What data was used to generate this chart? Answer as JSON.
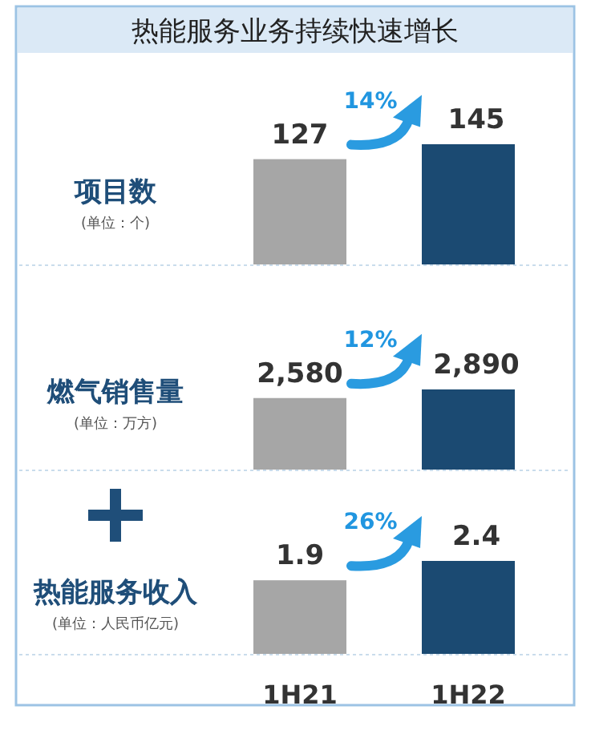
{
  "chart_data": [
    {
      "type": "bar",
      "title": "热能服务业务持续快速增长",
      "ylabel": "项目数",
      "subtitle": "(单位：个)",
      "categories": [
        null,
        null
      ],
      "values": [
        127,
        145
      ],
      "colors": [
        "#a6a6a6",
        "#1b4a72"
      ],
      "data_labels": true,
      "annotations": [
        "14%"
      ],
      "tick_labels": false
    },
    {
      "type": "bar",
      "ylabel": "燃气销售量",
      "subtitle": "(单位：万方)",
      "categories": [
        null,
        null
      ],
      "values": [
        2580,
        2890
      ],
      "value_labels": [
        "2,580",
        "2,890"
      ],
      "colors": [
        "#a6a6a6",
        "#1b4a72"
      ],
      "annotations": [
        "12%"
      ],
      "tick_labels": false
    },
    {
      "type": "bar",
      "ylabel": "热能服务收入",
      "subtitle": "(单位：人民币亿元)",
      "categories": [
        "1H21",
        "1H22"
      ],
      "values": [
        1.9,
        2.4
      ],
      "colors": [
        "#a6a6a6",
        "#1b4a72"
      ],
      "data_labels": true,
      "annotations": [
        "26%"
      ],
      "tick_labels": "x"
    }
  ]
}
